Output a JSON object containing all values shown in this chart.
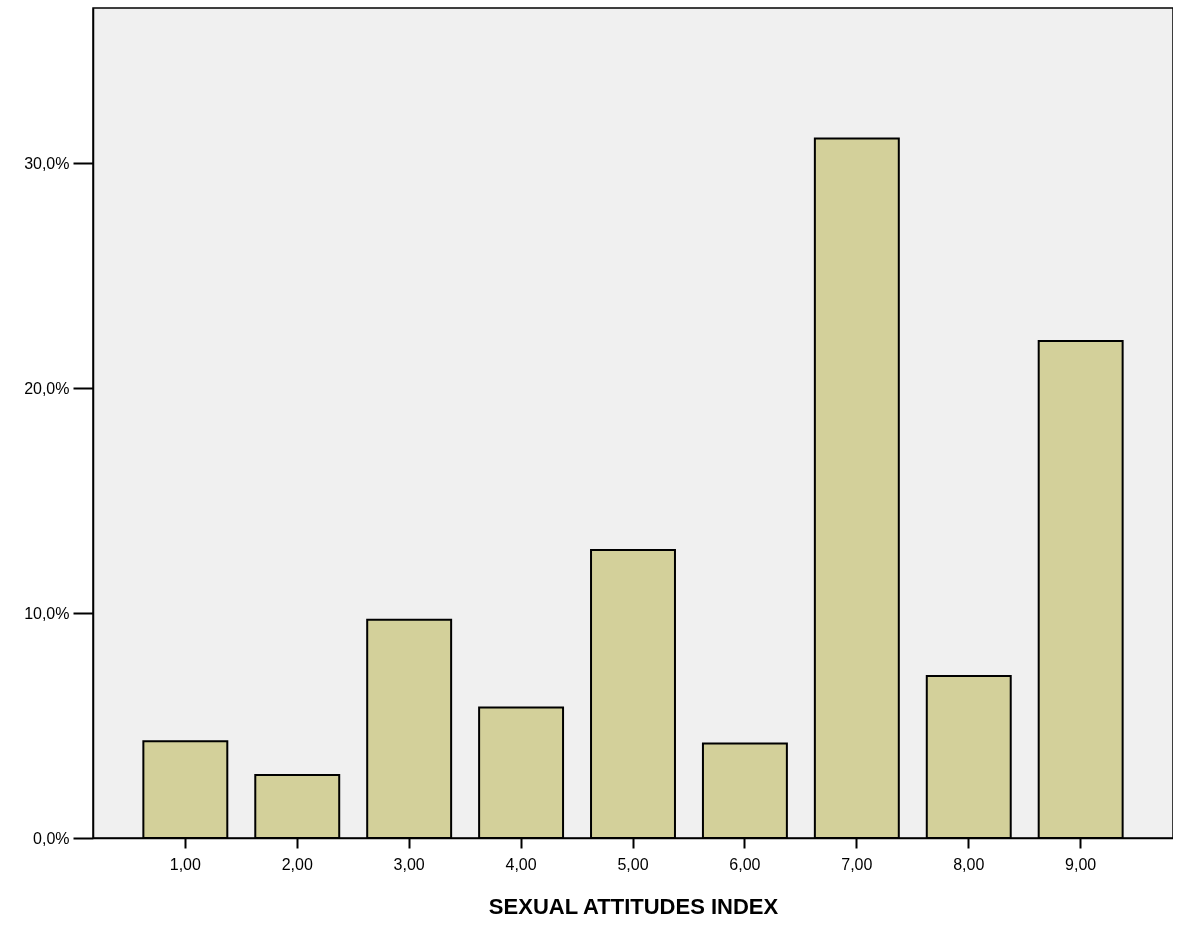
{
  "chart_data": {
    "type": "bar",
    "xlabel": "SEXUAL ATTITUDES INDEX",
    "categories": [
      "1,00",
      "2,00",
      "3,00",
      "4,00",
      "5,00",
      "6,00",
      "7,00",
      "8,00",
      "9,00"
    ],
    "values": [
      4.3,
      2.8,
      9.7,
      5.8,
      12.8,
      4.2,
      31.1,
      7.2,
      22.1
    ],
    "color": "#d3d09a",
    "ylim": [
      0,
      36.9
    ],
    "yticks": [
      {
        "value": 0,
        "label": "0,0%"
      },
      {
        "value": 10,
        "label": "10,0%"
      },
      {
        "value": 20,
        "label": "20,0%"
      },
      {
        "value": 30,
        "label": "30,0%"
      }
    ],
    "grid": false
  }
}
